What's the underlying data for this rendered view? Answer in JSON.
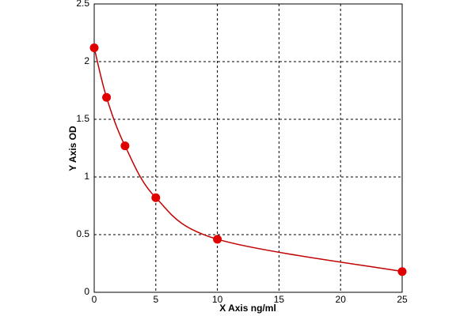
{
  "chart_data": {
    "type": "scatter",
    "x_label": "X Axis ng/ml",
    "y_label": "Y Axis OD",
    "x": [
      0,
      1,
      2.5,
      5,
      10,
      25
    ],
    "values": [
      2.12,
      1.69,
      1.27,
      0.82,
      0.46,
      0.18
    ],
    "color": "#e00000",
    "line_color": "#c00000",
    "smooth_line": true,
    "xlim": [
      0,
      25
    ],
    "xticks": [
      0,
      5,
      10,
      15,
      20,
      25
    ],
    "ylim": [
      0,
      2.5
    ],
    "yticks": [
      0,
      0.5,
      1,
      1.5,
      2,
      2.5
    ],
    "grid": true
  }
}
